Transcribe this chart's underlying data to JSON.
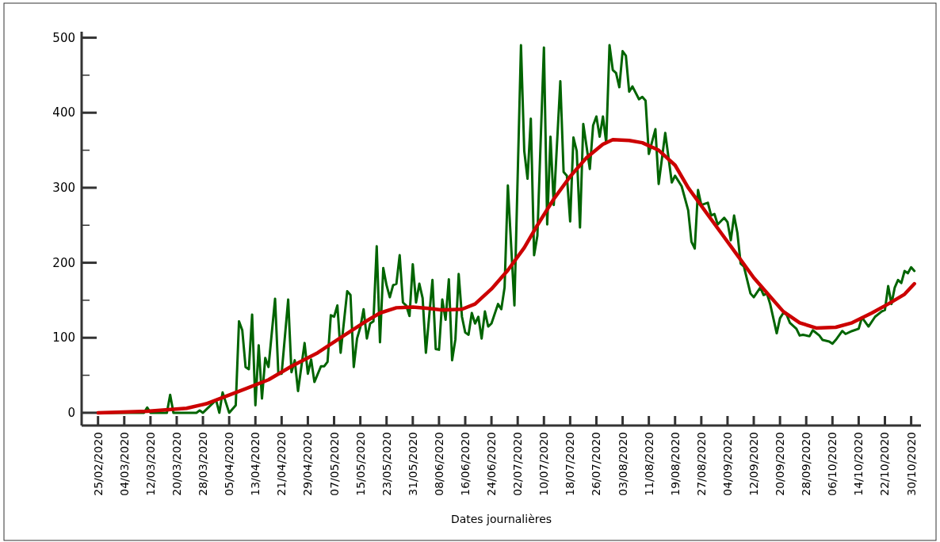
{
  "chart_data": {
    "type": "line",
    "xlabel": "Dates journalières",
    "xlim": [
      "2020-02-20",
      "2020-11-02"
    ],
    "ylim": [
      -17,
      508
    ],
    "xticks": [
      {
        "value": "2020-02-25",
        "label": "25/02/2020"
      },
      {
        "value": "2020-03-04",
        "label": "04/03/2020"
      },
      {
        "value": "2020-03-12",
        "label": "12/03/2020"
      },
      {
        "value": "2020-03-20",
        "label": "20/03/2020"
      },
      {
        "value": "2020-03-28",
        "label": "28/03/2020"
      },
      {
        "value": "2020-04-05",
        "label": "05/04/2020"
      },
      {
        "value": "2020-04-13",
        "label": "13/04/2020"
      },
      {
        "value": "2020-04-21",
        "label": "21/04/2020"
      },
      {
        "value": "2020-04-29",
        "label": "29/04/2020"
      },
      {
        "value": "2020-05-07",
        "label": "07/05/2020"
      },
      {
        "value": "2020-05-15",
        "label": "15/05/2020"
      },
      {
        "value": "2020-05-23",
        "label": "23/05/2020"
      },
      {
        "value": "2020-05-31",
        "label": "31/05/2020"
      },
      {
        "value": "2020-06-08",
        "label": "08/06/2020"
      },
      {
        "value": "2020-06-16",
        "label": "16/06/2020"
      },
      {
        "value": "2020-06-24",
        "label": "24/06/2020"
      },
      {
        "value": "2020-07-02",
        "label": "02/07/2020"
      },
      {
        "value": "2020-07-10",
        "label": "10/07/2020"
      },
      {
        "value": "2020-07-18",
        "label": "18/07/2020"
      },
      {
        "value": "2020-07-26",
        "label": "26/07/2020"
      },
      {
        "value": "2020-08-03",
        "label": "03/08/2020"
      },
      {
        "value": "2020-08-11",
        "label": "11/08/2020"
      },
      {
        "value": "2020-08-19",
        "label": "19/08/2020"
      },
      {
        "value": "2020-08-27",
        "label": "27/08/2020"
      },
      {
        "value": "2020-09-04",
        "label": "04/09/2020"
      },
      {
        "value": "2020-09-12",
        "label": "12/09/2020"
      },
      {
        "value": "2020-09-20",
        "label": "20/09/2020"
      },
      {
        "value": "2020-09-28",
        "label": "28/09/2020"
      },
      {
        "value": "2020-10-06",
        "label": "06/10/2020"
      },
      {
        "value": "2020-10-14",
        "label": "14/10/2020"
      },
      {
        "value": "2020-10-22",
        "label": "22/10/2020"
      },
      {
        "value": "2020-10-30",
        "label": "30/10/2020"
      }
    ],
    "yticks": [
      0,
      {
        "value": 50,
        "label": null
      },
      100,
      {
        "value": 150,
        "label": null
      },
      200,
      {
        "value": 250,
        "label": null
      },
      300,
      {
        "value": 350,
        "label": null
      },
      400,
      {
        "value": 450,
        "label": null
      },
      500
    ],
    "grid": false,
    "marker": "none",
    "line_style": "solid",
    "series": [
      {
        "color": "#006400",
        "x": [
          "2020-02-25",
          "2020-03-10",
          "2020-03-11",
          "2020-03-12",
          "2020-03-17",
          "2020-03-18",
          "2020-03-19",
          "2020-03-26",
          "2020-03-27",
          "2020-03-28",
          "2020-04-01",
          "2020-04-02",
          "2020-04-03",
          "2020-04-05",
          "2020-04-07",
          "2020-04-08",
          "2020-04-09",
          "2020-04-10",
          "2020-04-11",
          "2020-04-12",
          "2020-04-13",
          "2020-04-14",
          "2020-04-15",
          "2020-04-16",
          "2020-04-17",
          "2020-04-19",
          "2020-04-20",
          "2020-04-21",
          "2020-04-23",
          "2020-04-24",
          "2020-04-25",
          "2020-04-26",
          "2020-04-28",
          "2020-04-29",
          "2020-04-30",
          "2020-05-01",
          "2020-05-03",
          "2020-05-04",
          "2020-05-05",
          "2020-05-06",
          "2020-05-07",
          "2020-05-08",
          "2020-05-09",
          "2020-05-11",
          "2020-05-12",
          "2020-05-13",
          "2020-05-14",
          "2020-05-15",
          "2020-05-16",
          "2020-05-17",
          "2020-05-18",
          "2020-05-19",
          "2020-05-20",
          "2020-05-21",
          "2020-05-22",
          "2020-05-23",
          "2020-05-24",
          "2020-05-25",
          "2020-05-26",
          "2020-05-27",
          "2020-05-28",
          "2020-05-29",
          "2020-05-30",
          "2020-05-31",
          "2020-06-01",
          "2020-06-02",
          "2020-06-03",
          "2020-06-04",
          "2020-06-06",
          "2020-06-07",
          "2020-06-08",
          "2020-06-09",
          "2020-06-10",
          "2020-06-11",
          "2020-06-12",
          "2020-06-13",
          "2020-06-14",
          "2020-06-15",
          "2020-06-16",
          "2020-06-17",
          "2020-06-18",
          "2020-06-19",
          "2020-06-20",
          "2020-06-21",
          "2020-06-22",
          "2020-06-23",
          "2020-06-24",
          "2020-06-26",
          "2020-06-27",
          "2020-06-28",
          "2020-06-29",
          "2020-07-01",
          "2020-07-03",
          "2020-07-04",
          "2020-07-05",
          "2020-07-06",
          "2020-07-07",
          "2020-07-08",
          "2020-07-10",
          "2020-07-11",
          "2020-07-12",
          "2020-07-13",
          "2020-07-15",
          "2020-07-16",
          "2020-07-17",
          "2020-07-18",
          "2020-07-19",
          "2020-07-20",
          "2020-07-21",
          "2020-07-22",
          "2020-07-24",
          "2020-07-25",
          "2020-07-26",
          "2020-07-27",
          "2020-07-28",
          "2020-07-29",
          "2020-07-30",
          "2020-07-31",
          "2020-08-01",
          "2020-08-02",
          "2020-08-03",
          "2020-08-04",
          "2020-08-05",
          "2020-08-06",
          "2020-08-08",
          "2020-08-09",
          "2020-08-10",
          "2020-08-11",
          "2020-08-13",
          "2020-08-14",
          "2020-08-16",
          "2020-08-18",
          "2020-08-19",
          "2020-08-20",
          "2020-08-21",
          "2020-08-23",
          "2020-08-24",
          "2020-08-25",
          "2020-08-26",
          "2020-08-27",
          "2020-08-29",
          "2020-08-30",
          "2020-08-31",
          "2020-09-01",
          "2020-09-03",
          "2020-09-04",
          "2020-09-05",
          "2020-09-06",
          "2020-09-07",
          "2020-09-08",
          "2020-09-09",
          "2020-09-11",
          "2020-09-12",
          "2020-09-14",
          "2020-09-15",
          "2020-09-16",
          "2020-09-17",
          "2020-09-19",
          "2020-09-20",
          "2020-09-21",
          "2020-09-22",
          "2020-09-23",
          "2020-09-25",
          "2020-09-26",
          "2020-09-27",
          "2020-09-29",
          "2020-09-30",
          "2020-10-02",
          "2020-10-03",
          "2020-10-05",
          "2020-10-06",
          "2020-10-07",
          "2020-10-09",
          "2020-10-10",
          "2020-10-12",
          "2020-10-14",
          "2020-10-15",
          "2020-10-17",
          "2020-10-19",
          "2020-10-21",
          "2020-10-22",
          "2020-10-23",
          "2020-10-24",
          "2020-10-25",
          "2020-10-26",
          "2020-10-27",
          "2020-10-28",
          "2020-10-29",
          "2020-10-30",
          "2020-10-31"
        ],
        "values": [
          0,
          0,
          7,
          0,
          0,
          24,
          0,
          0,
          3,
          0,
          17,
          0,
          27,
          0,
          10,
          122,
          110,
          61,
          58,
          131,
          10,
          90,
          19,
          73,
          61,
          152,
          52,
          52,
          151,
          54,
          70,
          29,
          93,
          52,
          71,
          41,
          62,
          62,
          68,
          130,
          128,
          143,
          80,
          162,
          157,
          61,
          99,
          114,
          138,
          99,
          119,
          122,
          222,
          94,
          193,
          170,
          154,
          170,
          172,
          210,
          147,
          143,
          129,
          198,
          147,
          172,
          153,
          80,
          177,
          85,
          84,
          151,
          124,
          178,
          70,
          98,
          185,
          128,
          107,
          104,
          133,
          119,
          128,
          99,
          135,
          115,
          119,
          145,
          138,
          167,
          303,
          143,
          490,
          349,
          312,
          392,
          210,
          236,
          487,
          251,
          368,
          277,
          442,
          321,
          316,
          255,
          367,
          349,
          247,
          385,
          325,
          383,
          395,
          368,
          395,
          360,
          490,
          457,
          453,
          434,
          482,
          476,
          428,
          435,
          418,
          421,
          416,
          345,
          378,
          305,
          373,
          307,
          316,
          309,
          302,
          270,
          228,
          219,
          297,
          277,
          280,
          263,
          265,
          251,
          260,
          254,
          230,
          263,
          240,
          199,
          195,
          159,
          154,
          167,
          157,
          159,
          145,
          106,
          126,
          133,
          131,
          120,
          112,
          103,
          104,
          102,
          110,
          103,
          97,
          95,
          92,
          97,
          109,
          105,
          109,
          112,
          127,
          115,
          128,
          135,
          137,
          169,
          145,
          167,
          177,
          173,
          189,
          186,
          194,
          189
        ]
      },
      {
        "color": "#cc0000",
        "x": [
          "2020-02-25",
          "2020-03-11",
          "2020-03-23",
          "2020-03-29",
          "2020-04-04",
          "2020-04-10",
          "2020-04-17",
          "2020-04-24",
          "2020-05-02",
          "2020-05-09",
          "2020-05-16",
          "2020-05-21",
          "2020-05-26",
          "2020-05-31",
          "2020-06-05",
          "2020-06-09",
          "2020-06-15",
          "2020-06-19",
          "2020-06-24",
          "2020-06-29",
          "2020-07-04",
          "2020-07-08",
          "2020-07-13",
          "2020-07-18",
          "2020-07-23",
          "2020-07-28",
          "2020-07-31",
          "2020-08-05",
          "2020-08-09",
          "2020-08-14",
          "2020-08-19",
          "2020-08-23",
          "2020-08-28",
          "2020-09-02",
          "2020-09-07",
          "2020-09-12",
          "2020-09-17",
          "2020-09-21",
          "2020-09-26",
          "2020-10-01",
          "2020-10-07",
          "2020-10-12",
          "2020-10-18",
          "2020-10-23",
          "2020-10-28",
          "2020-10-31"
        ],
        "values": [
          0,
          2,
          6,
          12,
          22,
          32,
          44,
          62,
          80,
          100,
          120,
          133,
          140,
          141,
          139,
          137,
          138,
          145,
          165,
          190,
          220,
          250,
          285,
          315,
          340,
          358,
          364,
          363,
          360,
          350,
          330,
          300,
          270,
          240,
          210,
          180,
          155,
          135,
          120,
          113,
          114,
          120,
          133,
          145,
          158,
          172
        ]
      }
    ]
  }
}
